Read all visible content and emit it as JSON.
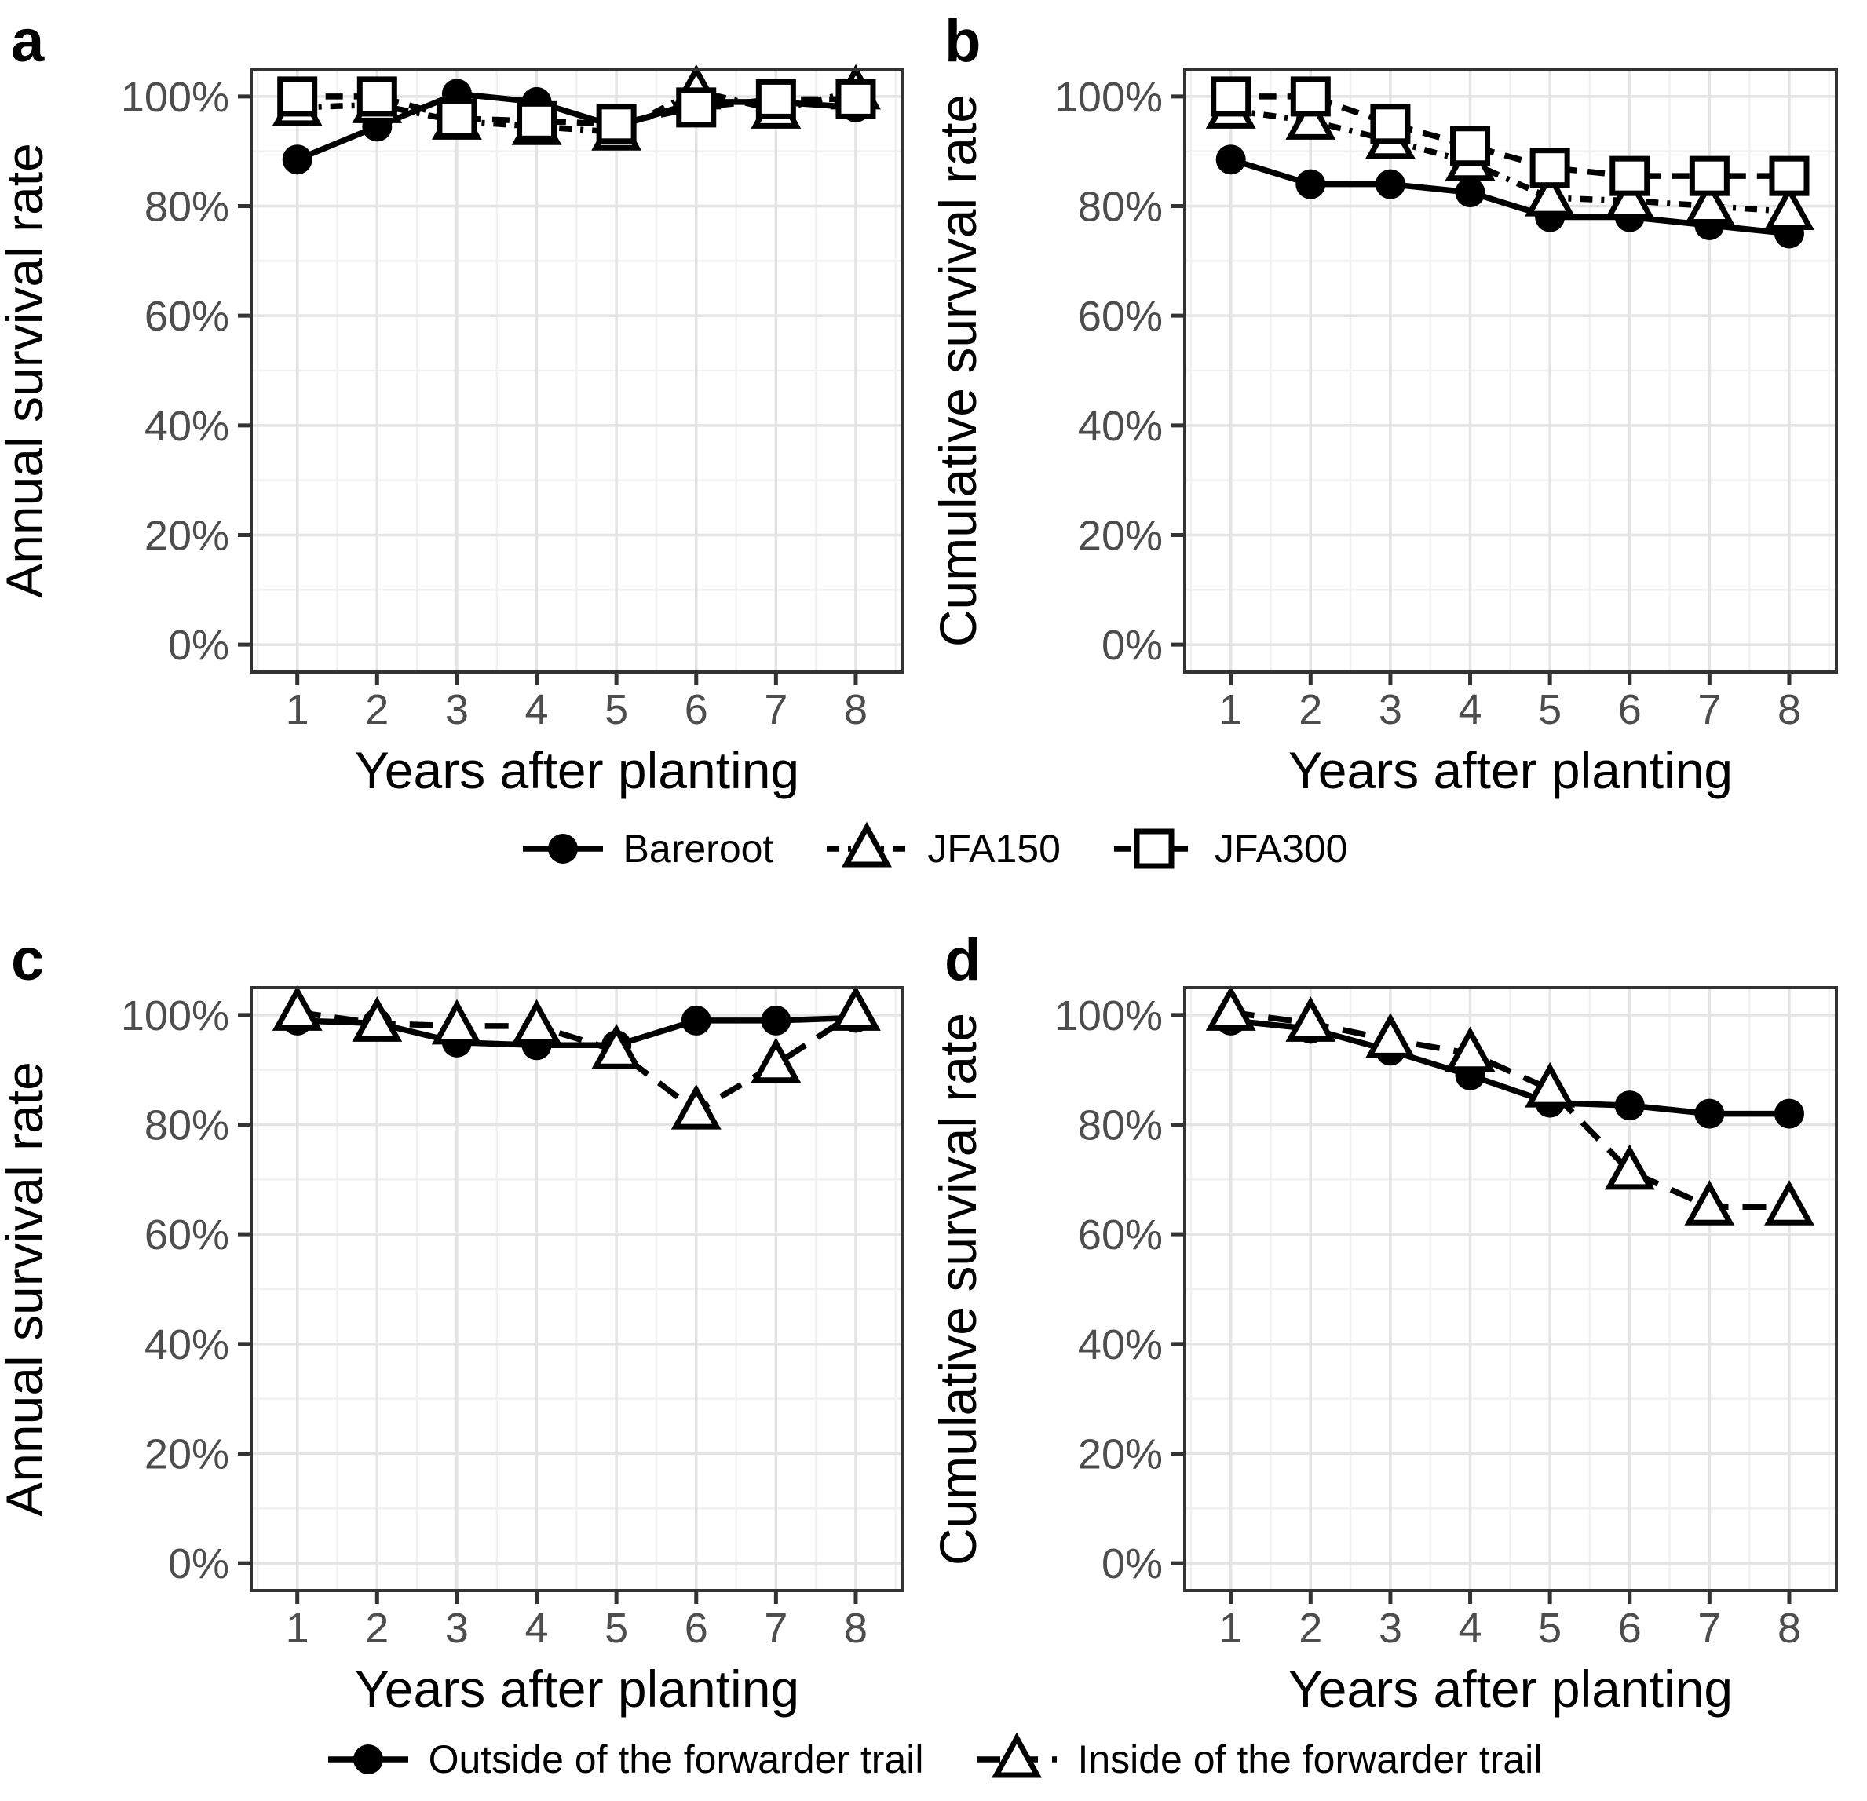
{
  "figure": {
    "background": "#ffffff",
    "series_color": "#000000",
    "grid_major_color": "#e4e4e4",
    "grid_minor_color": "#f1f1f1",
    "axis_text_color": "#4d4d4d",
    "axis_title_color": "#000000",
    "border_color": "#333333"
  },
  "chart_data": {
    "type": "line",
    "x": [
      1,
      2,
      3,
      4,
      5,
      6,
      7,
      8
    ],
    "xlabel": "Years after planting",
    "ylim": [
      -5,
      105
    ],
    "ytick_values": [
      0,
      20,
      40,
      60,
      80,
      100
    ],
    "ytick_labels": [
      "0%",
      "20%",
      "40%",
      "60%",
      "80%",
      "100%"
    ],
    "grid": true,
    "legend_position": "bottom",
    "panels": [
      {
        "letter": "a",
        "ylabel": "Annual survival rate",
        "series": [
          {
            "name": "Bareroot",
            "marker": "filled-circle",
            "line": "solid",
            "values": [
              88.5,
              94.5,
              100.5,
              99,
              94.5,
              99,
              99,
              98
            ]
          },
          {
            "name": "JFA150",
            "marker": "open-triangle",
            "line": "dotdash",
            "values": [
              98,
              98.5,
              95.5,
              94.5,
              93.5,
              101,
              97.5,
              101
            ]
          },
          {
            "name": "JFA300",
            "marker": "open-square",
            "line": "dash",
            "values": [
              100,
              100,
              96,
              95.5,
              95,
              98,
              99.5,
              99.5
            ]
          }
        ]
      },
      {
        "letter": "b",
        "ylabel": "Cumulative survival rate",
        "series": [
          {
            "name": "Bareroot",
            "marker": "filled-circle",
            "line": "solid",
            "values": [
              88.5,
              84,
              84,
              82.5,
              78,
              78,
              76.5,
              75
            ]
          },
          {
            "name": "JFA150",
            "marker": "open-triangle",
            "line": "dotdash",
            "values": [
              97.5,
              95.5,
              92,
              88,
              81.5,
              81,
              80,
              79
            ]
          },
          {
            "name": "JFA300",
            "marker": "open-square",
            "line": "dash",
            "values": [
              100,
              100,
              95,
              91,
              87,
              85.5,
              85.5,
              85.5
            ]
          }
        ]
      },
      {
        "letter": "c",
        "ylabel": "Annual survival rate",
        "series": [
          {
            "name": "Outside of the forwarder trail",
            "marker": "filled-circle",
            "line": "solid",
            "values": [
              99,
              98.5,
              95,
              94.5,
              94.5,
              99,
              99,
              99.5
            ]
          },
          {
            "name": "Inside of the forwarder trail",
            "marker": "open-triangle",
            "line": "longdash",
            "values": [
              100.5,
              98.5,
              98,
              98,
              93.5,
              82.5,
              91,
              100.5
            ]
          }
        ]
      },
      {
        "letter": "d",
        "ylabel": "Cumulative survival rate",
        "series": [
          {
            "name": "Outside of the forwarder trail",
            "marker": "filled-circle",
            "line": "solid",
            "values": [
              99,
              97.5,
              93.5,
              89,
              84,
              83.5,
              82,
              82
            ]
          },
          {
            "name": "Inside of the forwarder trail",
            "marker": "open-triangle",
            "line": "longdash",
            "values": [
              100.5,
              98.5,
              95.5,
              93,
              86.5,
              71.5,
              65,
              65
            ]
          }
        ]
      }
    ],
    "legends": [
      {
        "items": [
          {
            "label": "Bareroot",
            "marker": "filled-circle",
            "line": "solid"
          },
          {
            "label": "JFA150",
            "marker": "open-triangle",
            "line": "dotdash"
          },
          {
            "label": "JFA300",
            "marker": "open-square",
            "line": "dash"
          }
        ]
      },
      {
        "items": [
          {
            "label": "Outside of the forwarder trail",
            "marker": "filled-circle",
            "line": "solid"
          },
          {
            "label": "Inside of the forwarder trail",
            "marker": "open-triangle",
            "line": "longdash"
          }
        ]
      }
    ]
  }
}
